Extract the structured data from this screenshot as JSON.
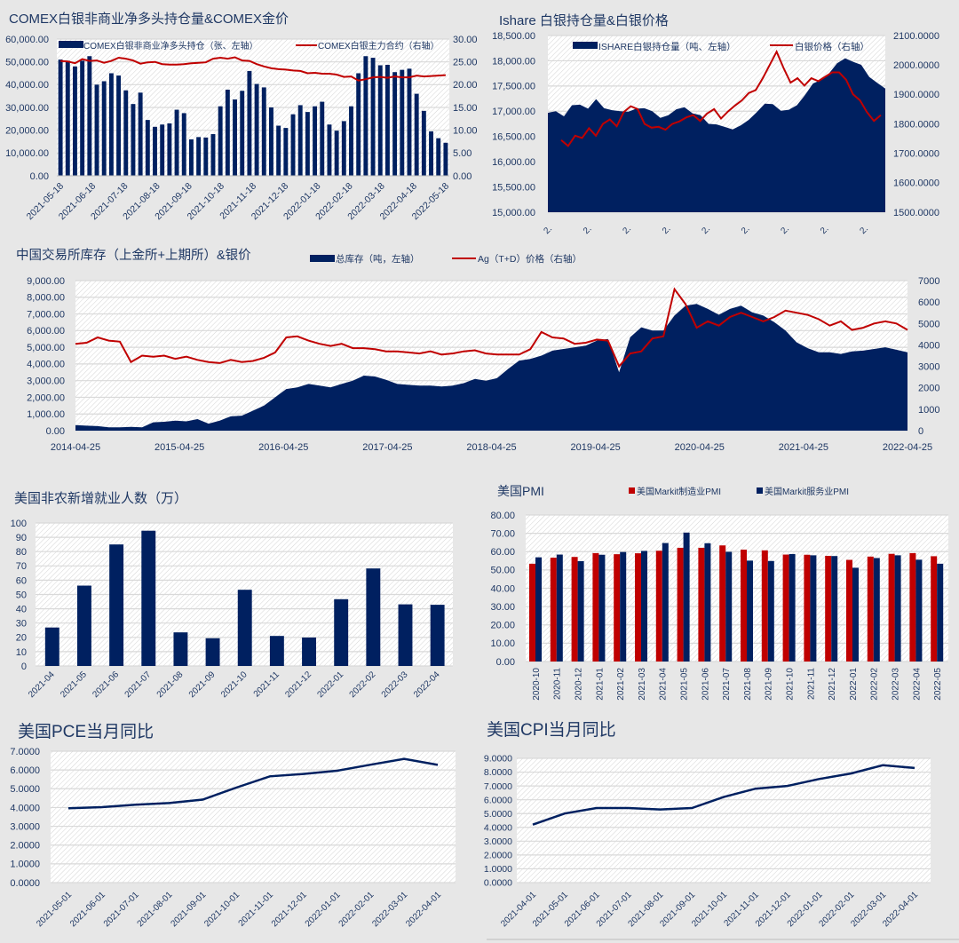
{
  "colors": {
    "navy": "#002060",
    "red": "#c00000",
    "background": "#e7e7e7",
    "text": "#1f3864"
  },
  "chart_data": [
    {
      "id": "comex",
      "type": "bar",
      "title": "COMEX白银非商业净多头持仓量&COMEX金价",
      "legend": [
        "COMEX白银非商业净多头持仓（张、左轴）",
        "COMEX白银主力合约（右轴）"
      ],
      "legend_placement": "top",
      "ylim": [
        0,
        60000
      ],
      "y2lim": [
        0,
        30
      ],
      "yticks": [
        "0.00",
        "10,000.00",
        "20,000.00",
        "30,000.00",
        "40,000.00",
        "50,000.00",
        "60,000.00"
      ],
      "y2ticks": [
        "0.00",
        "5.00",
        "10.00",
        "15.00",
        "20.00",
        "25.00",
        "30.00"
      ],
      "xticks": [
        "2021-05-18",
        "2021-06-18",
        "2021-07-18",
        "2021-08-18",
        "2021-09-18",
        "2021-10-18",
        "2021-11-18",
        "2021-12-18",
        "2022-01-18",
        "2022-02-18",
        "2022-03-18",
        "2022-04-18",
        "2022-05-18"
      ],
      "grid": true,
      "series": [
        {
          "name": "COMEX白银非商业净多头持仓（张、左轴）",
          "type": "bar",
          "axis": "left",
          "values": [
            51000,
            50500,
            48000,
            50500,
            52500,
            40000,
            41500,
            45000,
            44000,
            37500,
            31500,
            36500,
            24500,
            21500,
            22500,
            23000,
            29000,
            27500,
            16000,
            17000,
            16800,
            18300,
            30500,
            37800,
            33500,
            37300,
            46000,
            40300,
            38800,
            30000,
            22000,
            21000,
            27000,
            31000,
            28000,
            30500,
            32500,
            22500,
            19800,
            24000,
            30500,
            45000,
            52500,
            51800,
            48500,
            48700,
            45500,
            46500,
            47000,
            36000,
            28500,
            19500,
            16500,
            14500
          ]
        },
        {
          "name": "COMEX白银主力合约（右轴）",
          "type": "line",
          "axis": "right",
          "values": [
            25.2,
            25.1,
            24.7,
            25.6,
            25.2,
            25.3,
            24.8,
            25.2,
            25.9,
            25.7,
            25.3,
            24.6,
            24.9,
            25.0,
            24.5,
            24.4,
            24.4,
            24.5,
            24.7,
            24.8,
            24.9,
            25.7,
            25.9,
            25.7,
            26.0,
            25.3,
            25.2,
            24.5,
            24.0,
            23.6,
            23.4,
            23.3,
            23.1,
            23.0,
            22.5,
            22.6,
            22.4,
            22.4,
            22.2,
            21.7,
            21.8,
            20.9,
            21.2,
            21.6,
            21.7,
            21.5,
            21.8,
            21.6,
            21.6,
            22.0,
            21.8,
            21.9,
            22.0,
            22.1
          ]
        }
      ]
    },
    {
      "id": "ishare",
      "type": "area",
      "title": "Ishare 白银持仓量&白银价格",
      "legend": [
        "ISHARE白银持仓量（吨、左轴）",
        "白银价格（右轴）"
      ],
      "legend_placement": "top",
      "ylim": [
        15000,
        18500
      ],
      "y2lim": [
        1500,
        2100
      ],
      "yticks": [
        "15,000.00",
        "15,500.00",
        "16,000.00",
        "16,500.00",
        "17,000.00",
        "17,500.00",
        "18,000.00",
        "18,500.00"
      ],
      "y2ticks": [
        "1500.0000",
        "1600.0000",
        "1700.0000",
        "1800.0000",
        "1900.0000",
        "2000.0000",
        "2100.0000"
      ],
      "xticks": [
        "2.",
        "2.",
        "2.",
        "2.",
        "2.",
        "2.",
        "2.",
        "2.",
        "2."
      ],
      "grid": true,
      "series": [
        {
          "name": "ISHARE白银持仓量（吨、左轴）",
          "type": "area",
          "axis": "left",
          "values": [
            16970,
            17000,
            16900,
            17120,
            17130,
            17050,
            17240,
            17060,
            17020,
            17000,
            16990,
            17050,
            17060,
            17000,
            16870,
            16920,
            17040,
            17080,
            16960,
            16920,
            16750,
            16740,
            16690,
            16640,
            16720,
            16830,
            16980,
            17150,
            17140,
            17010,
            17030,
            17120,
            17320,
            17550,
            17620,
            17750,
            17950,
            18050,
            17980,
            17920,
            17680,
            17560,
            17450
          ]
        },
        {
          "name": "白银价格（右轴）",
          "type": "line",
          "axis": "right",
          "values": [
            1745,
            1725,
            1760,
            1752,
            1785,
            1760,
            1800,
            1815,
            1792,
            1840,
            1860,
            1850,
            1800,
            1787,
            1790,
            1780,
            1800,
            1808,
            1822,
            1830,
            1810,
            1835,
            1850,
            1818,
            1842,
            1862,
            1880,
            1905,
            1915,
            1955,
            2000,
            2045,
            1990,
            1940,
            1955,
            1930,
            1955,
            1945,
            1960,
            1975,
            1975,
            1950,
            1900,
            1880,
            1840,
            1810,
            1830
          ]
        }
      ]
    },
    {
      "id": "china",
      "type": "area",
      "title": "中国交易所库存（上金所+上期所）&银价",
      "legend": [
        "总库存（吨，左轴）",
        "Ag（T+D）价格（右轴）"
      ],
      "legend_placement": "top-right",
      "ylim": [
        0,
        9000
      ],
      "y2lim": [
        0,
        7000
      ],
      "yticks": [
        "0.00",
        "1,000.00",
        "2,000.00",
        "3,000.00",
        "4,000.00",
        "5,000.00",
        "6,000.00",
        "7,000.00",
        "8,000.00",
        "9,000.00"
      ],
      "y2ticks": [
        "0",
        "1000",
        "2000",
        "3000",
        "4000",
        "5000",
        "6000",
        "7000"
      ],
      "xticks": [
        "2014-04-25",
        "2015-04-25",
        "2016-04-25",
        "2017-04-25",
        "2018-04-25",
        "2019-04-25",
        "2020-04-25",
        "2021-04-25",
        "2022-04-25"
      ],
      "grid": true,
      "series": [
        {
          "name": "总库存（吨，左轴）",
          "type": "area",
          "axis": "left",
          "values": [
            330,
            300,
            270,
            200,
            200,
            230,
            200,
            500,
            530,
            600,
            560,
            690,
            420,
            600,
            860,
            900,
            1200,
            1500,
            2000,
            2500,
            2600,
            2800,
            2700,
            2600,
            2800,
            3000,
            3300,
            3250,
            3050,
            2800,
            2750,
            2700,
            2700,
            2650,
            2700,
            2850,
            3100,
            3000,
            3150,
            3700,
            4200,
            4300,
            4500,
            4800,
            4900,
            5000,
            5100,
            5400,
            5500,
            3500,
            5600,
            6200,
            6000,
            6000,
            6900,
            7500,
            7600,
            7300,
            6950,
            7300,
            7500,
            7100,
            6900,
            6500,
            6000,
            5300,
            4950,
            4700,
            4700,
            4600,
            4750,
            4800,
            4900,
            5000,
            4850,
            4700
          ]
        },
        {
          "name": "Ag（T+D）价格（右轴）",
          "type": "line",
          "axis": "right",
          "values": [
            4050,
            4100,
            4350,
            4200,
            4150,
            3200,
            3500,
            3450,
            3500,
            3350,
            3450,
            3300,
            3200,
            3150,
            3300,
            3200,
            3250,
            3400,
            3650,
            4350,
            4400,
            4200,
            4050,
            3950,
            4050,
            3850,
            3850,
            3800,
            3700,
            3700,
            3650,
            3600,
            3700,
            3550,
            3600,
            3700,
            3750,
            3600,
            3550,
            3550,
            3550,
            3800,
            4600,
            4350,
            4300,
            4050,
            4100,
            4250,
            4200,
            3000,
            3600,
            3700,
            4300,
            4400,
            6600,
            5900,
            4800,
            5100,
            4900,
            5300,
            5500,
            5300,
            5100,
            5300,
            5600,
            5500,
            5400,
            5200,
            4900,
            5100,
            4700,
            4800,
            5000,
            5100,
            5000,
            4700
          ]
        }
      ]
    },
    {
      "id": "nonfarm",
      "type": "bar",
      "title": "美国非农新增就业人数（万）",
      "ylim": [
        0,
        100
      ],
      "yticks": [
        "0",
        "10",
        "20",
        "30",
        "40",
        "50",
        "60",
        "70",
        "80",
        "90",
        "100"
      ],
      "categories": [
        "2021-04",
        "2021-05",
        "2021-06",
        "2021-07",
        "2021-08",
        "2021-09",
        "2021-10",
        "2021-11",
        "2021-12",
        "2022-01",
        "2022-02",
        "2022-03",
        "2022-04"
      ],
      "values": [
        26.9,
        56.2,
        85.0,
        94.6,
        23.5,
        19.4,
        53.3,
        21.0,
        19.9,
        46.7,
        68.2,
        43.1,
        42.8
      ],
      "grid": true
    },
    {
      "id": "pmi",
      "type": "bar",
      "title": "美国PMI",
      "legend": [
        "美国Markit制造业PMI",
        "美国Markit服务业PMI"
      ],
      "legend_placement": "top",
      "ylim": [
        0,
        80
      ],
      "yticks": [
        "0.00",
        "10.00",
        "20.00",
        "30.00",
        "40.00",
        "50.00",
        "60.00",
        "70.00",
        "80.00"
      ],
      "categories": [
        "2020-10",
        "2020-11",
        "2020-12",
        "2021-01",
        "2021-02",
        "2021-03",
        "2021-04",
        "2021-05",
        "2021-06",
        "2021-07",
        "2021-08",
        "2021-09",
        "2021-10",
        "2021-11",
        "2021-12",
        "2022-01",
        "2022-02",
        "2022-03",
        "2022-04",
        "2022-05"
      ],
      "series": [
        {
          "name": "美国Markit制造业PMI",
          "values": [
            53.4,
            56.7,
            57.1,
            59.2,
            58.6,
            59.1,
            60.5,
            62.1,
            62.1,
            63.4,
            61.1,
            60.7,
            58.4,
            58.3,
            57.7,
            55.5,
            57.3,
            58.8,
            59.2,
            57.5
          ]
        },
        {
          "name": "美国Markit服务业PMI",
          "values": [
            56.9,
            58.4,
            54.8,
            58.3,
            59.8,
            60.4,
            64.7,
            70.4,
            64.6,
            59.9,
            55.1,
            54.9,
            58.7,
            58.0,
            57.6,
            51.2,
            56.5,
            58.0,
            55.6,
            53.4
          ]
        }
      ],
      "grid": true
    },
    {
      "id": "pce",
      "type": "line",
      "title": "美国PCE当月同比",
      "ylim": [
        0,
        7
      ],
      "yticks": [
        "0.0000",
        "1.0000",
        "2.0000",
        "3.0000",
        "4.0000",
        "5.0000",
        "6.0000",
        "7.0000"
      ],
      "categories": [
        "2021-05-01",
        "2021-06-01",
        "2021-07-01",
        "2021-08-01",
        "2021-09-01",
        "2021-10-01",
        "2021-11-01",
        "2021-12-01",
        "2022-01-01",
        "2022-02-01",
        "2022-03-01",
        "2022-04-01"
      ],
      "values": [
        3.96,
        4.02,
        4.15,
        4.24,
        4.42,
        5.06,
        5.66,
        5.79,
        5.96,
        6.28,
        6.59,
        6.27
      ],
      "grid": true
    },
    {
      "id": "cpi",
      "type": "line",
      "title": "美国CPI当月同比",
      "ylim": [
        0,
        9
      ],
      "yticks": [
        "0.0000",
        "1.0000",
        "2.0000",
        "3.0000",
        "4.0000",
        "5.0000",
        "6.0000",
        "7.0000",
        "8.0000",
        "9.0000"
      ],
      "categories": [
        "2021-04-01",
        "2021-05-01",
        "2021-06-01",
        "2021-07-01",
        "2021-08-01",
        "2021-09-01",
        "2021-10-01",
        "2021-11-01",
        "2021-12-01",
        "2022-01-01",
        "2022-02-01",
        "2022-03-01",
        "2022-04-01"
      ],
      "values": [
        4.2,
        5.0,
        5.4,
        5.4,
        5.3,
        5.4,
        6.2,
        6.8,
        7.0,
        7.5,
        7.9,
        8.5,
        8.3
      ],
      "grid": true
    }
  ]
}
